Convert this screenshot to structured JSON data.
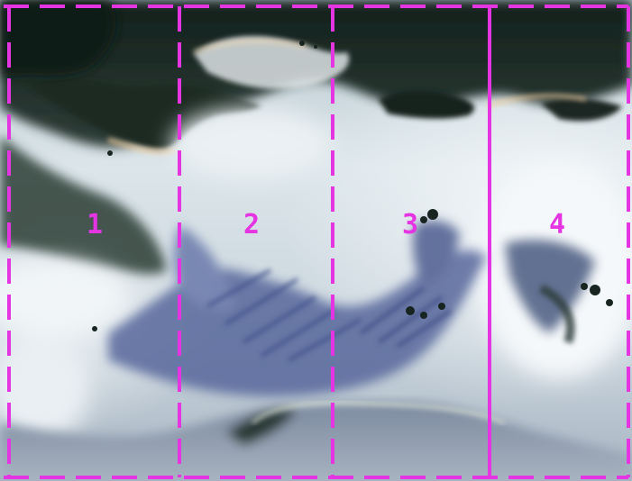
{
  "image": {
    "description_free": true,
    "overlay_color": "#e535e3",
    "palette": {
      "sky": "#d8e3ea",
      "sky_light": "#eef4f7",
      "cloud_dark": "#1d2a26",
      "cloud_mid": "#3c4b45",
      "blue_streak": "#4f5f9a",
      "slate": "#6d7e8f",
      "warm_rim": "#f2cf9e"
    }
  },
  "panels": [
    {
      "label": "1",
      "border_style": "dashed"
    },
    {
      "label": "2",
      "border_style": "dashed"
    },
    {
      "label": "3",
      "border_style": "dashed"
    },
    {
      "label": "4",
      "border_style": "solid"
    }
  ]
}
